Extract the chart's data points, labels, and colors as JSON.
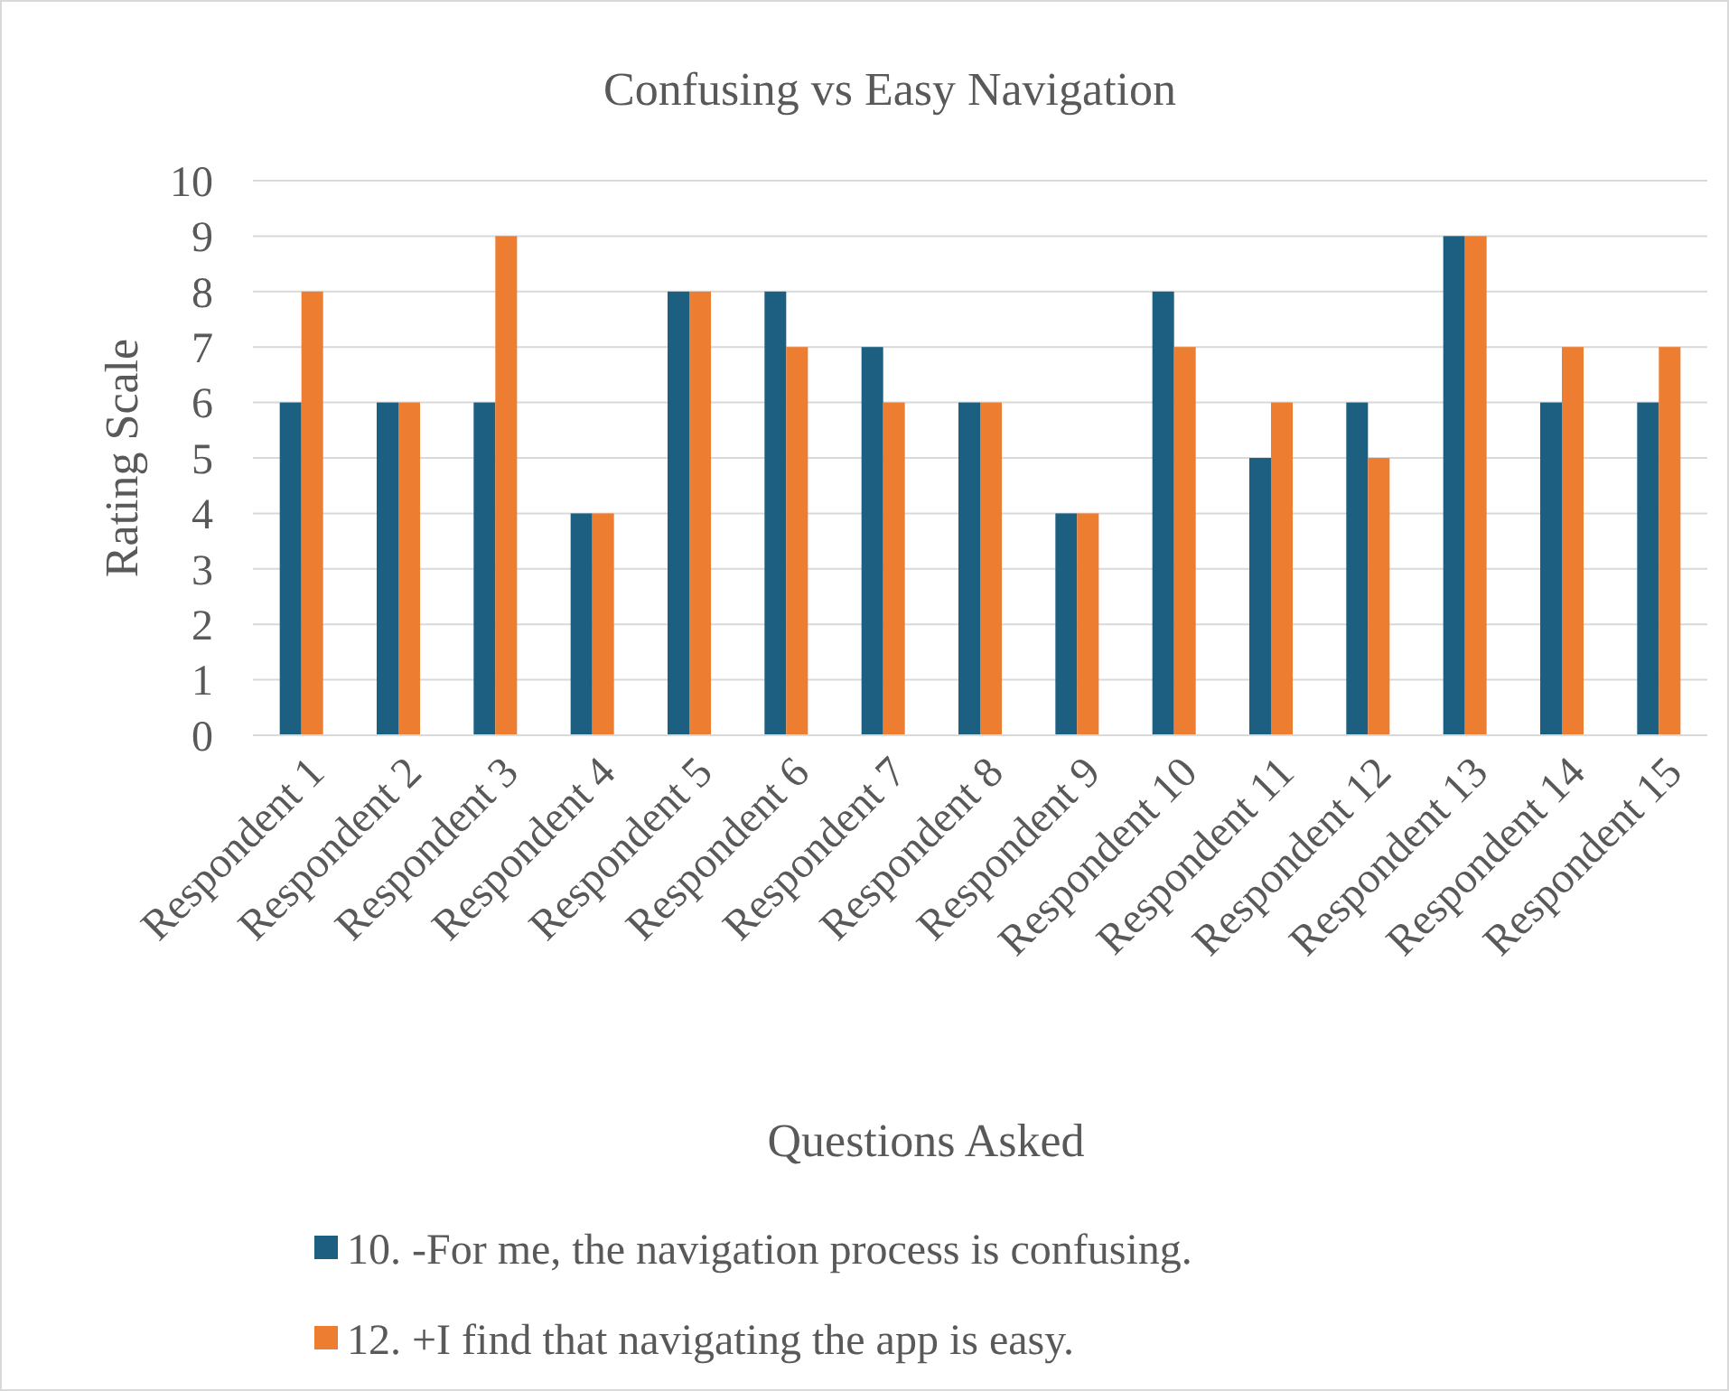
{
  "chart_data": {
    "type": "bar",
    "title": "Confusing vs Easy Navigation",
    "xlabel": "Questions Asked",
    "ylabel": "Rating Scale",
    "categories": [
      "Respondent 1",
      "Respondent 2",
      "Respondent 3",
      "Respondent 4",
      "Respondent 5",
      "Respondent 6",
      "Respondent 7",
      "Respondent 8",
      "Respondent 9",
      "Respondent 10",
      "Respondent 11",
      "Respondent 12",
      "Respondent 13",
      "Respondent 14",
      "Respondent 15"
    ],
    "series": [
      {
        "name": "10. -For me, the navigation process is confusing.",
        "color": "#1d5f80",
        "values": [
          6,
          6,
          6,
          4,
          8,
          8,
          7,
          6,
          4,
          8,
          5,
          6,
          9,
          6,
          6
        ]
      },
      {
        "name": "12. +I find that navigating the app is easy.",
        "color": "#ed7d31",
        "values": [
          8,
          6,
          9,
          4,
          8,
          7,
          6,
          6,
          4,
          7,
          6,
          5,
          9,
          7,
          7
        ]
      }
    ],
    "ylim": [
      0,
      10
    ],
    "yticks": [
      0,
      1,
      2,
      3,
      4,
      5,
      6,
      7,
      8,
      9,
      10
    ],
    "grid": "y",
    "legend": "bottom"
  }
}
